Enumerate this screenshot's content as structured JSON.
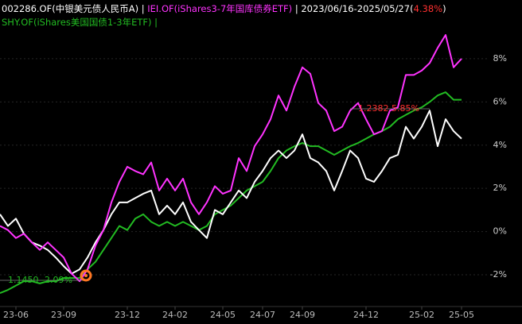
{
  "header": {
    "separator": "|",
    "date_range": "2023/06/16-2025/05/27",
    "open": "(",
    "change": "4.38%",
    "change_color": "#ff3030",
    "close": ")"
  },
  "chart_data": {
    "type": "line",
    "categories": [
      null,
      null,
      "23-06",
      null,
      null,
      null,
      null,
      null,
      "23-09",
      null,
      null,
      null,
      null,
      null,
      null,
      null,
      "23-12",
      null,
      null,
      null,
      null,
      null,
      "24-02",
      null,
      null,
      null,
      null,
      null,
      "24-05",
      null,
      null,
      null,
      null,
      "24-07",
      null,
      null,
      null,
      null,
      "24-09",
      null,
      null,
      null,
      null,
      null,
      null,
      null,
      "24-12",
      null,
      null,
      null,
      null,
      null,
      null,
      "25-02",
      null,
      null,
      null,
      null,
      "25-05"
    ],
    "series": [
      {
        "name": "002286.OF(中银美元债人民币A)",
        "color": "#ffffff",
        "values": [
          0.8,
          0.26,
          0.6,
          -0.1,
          -0.5,
          -0.65,
          -0.85,
          -1.2,
          -1.6,
          -1.95,
          -1.75,
          -1.2,
          -0.5,
          0.07,
          0.8,
          1.35,
          1.35,
          1.55,
          1.75,
          1.9,
          0.8,
          1.2,
          0.8,
          1.35,
          0.45,
          0.07,
          -0.3,
          1.0,
          0.8,
          1.35,
          1.9,
          1.55,
          2.3,
          2.8,
          3.4,
          3.75,
          3.4,
          3.75,
          4.5,
          3.4,
          3.2,
          2.8,
          1.9,
          2.8,
          3.75,
          3.4,
          2.45,
          2.3,
          2.8,
          3.4,
          3.55,
          4.85,
          4.3,
          4.85,
          5.6,
          3.95,
          5.2,
          4.65,
          4.3
        ]
      },
      {
        "name": "IEI.OF(iShares3-7年国库债券ETF)",
        "color": "#ff33ff",
        "values": [
          0.26,
          0.07,
          -0.3,
          -0.1,
          -0.5,
          -0.85,
          -0.5,
          -0.85,
          -1.2,
          -1.95,
          -2.3,
          -1.75,
          -0.65,
          0.07,
          1.35,
          2.3,
          3.0,
          2.8,
          2.65,
          3.2,
          1.9,
          2.45,
          1.9,
          2.45,
          1.35,
          0.8,
          1.35,
          2.1,
          1.75,
          1.9,
          3.4,
          2.8,
          3.95,
          4.5,
          5.2,
          6.3,
          5.6,
          6.7,
          7.6,
          7.3,
          5.95,
          5.6,
          4.65,
          4.85,
          5.6,
          5.95,
          5.2,
          4.5,
          4.65,
          5.6,
          5.75,
          7.25,
          7.25,
          7.45,
          7.8,
          8.5,
          9.1,
          7.6,
          8.0
        ]
      },
      {
        "name": "SHY.OF(iShares美国国债1-3年ETF)",
        "color": "#22bb22",
        "values": [
          -2.85,
          -2.7,
          -2.5,
          -2.3,
          -2.3,
          -2.4,
          -2.3,
          -2.3,
          -2.15,
          -2.15,
          -2.15,
          -1.75,
          -1.4,
          -0.85,
          -0.3,
          0.26,
          0.07,
          0.6,
          0.8,
          0.45,
          0.26,
          0.45,
          0.26,
          0.45,
          0.26,
          0.07,
          0.26,
          0.8,
          1.0,
          1.2,
          1.55,
          1.9,
          2.1,
          2.3,
          2.8,
          3.4,
          3.75,
          3.95,
          4.1,
          3.95,
          3.95,
          3.75,
          3.55,
          3.75,
          3.95,
          4.1,
          4.3,
          4.5,
          4.65,
          4.85,
          5.2,
          5.4,
          5.6,
          5.75,
          6.0,
          6.3,
          6.45,
          6.1,
          6.1
        ]
      }
    ],
    "ylim": [
      -3.25,
      10.35
    ],
    "yticks": [
      {
        "value": 8,
        "label": "8%"
      },
      {
        "value": 6,
        "label": "6%"
      },
      {
        "value": 4,
        "label": "4%"
      },
      {
        "value": 2,
        "label": "2%"
      },
      {
        "value": 0,
        "label": "0%"
      },
      {
        "value": -2,
        "label": "-2%"
      }
    ],
    "grid": true,
    "annotations": [
      {
        "text": "1.2382 5.85%",
        "color": "#ff3030"
      },
      {
        "text": "1.1450 -2.09%",
        "color": "#22bb22"
      }
    ]
  }
}
